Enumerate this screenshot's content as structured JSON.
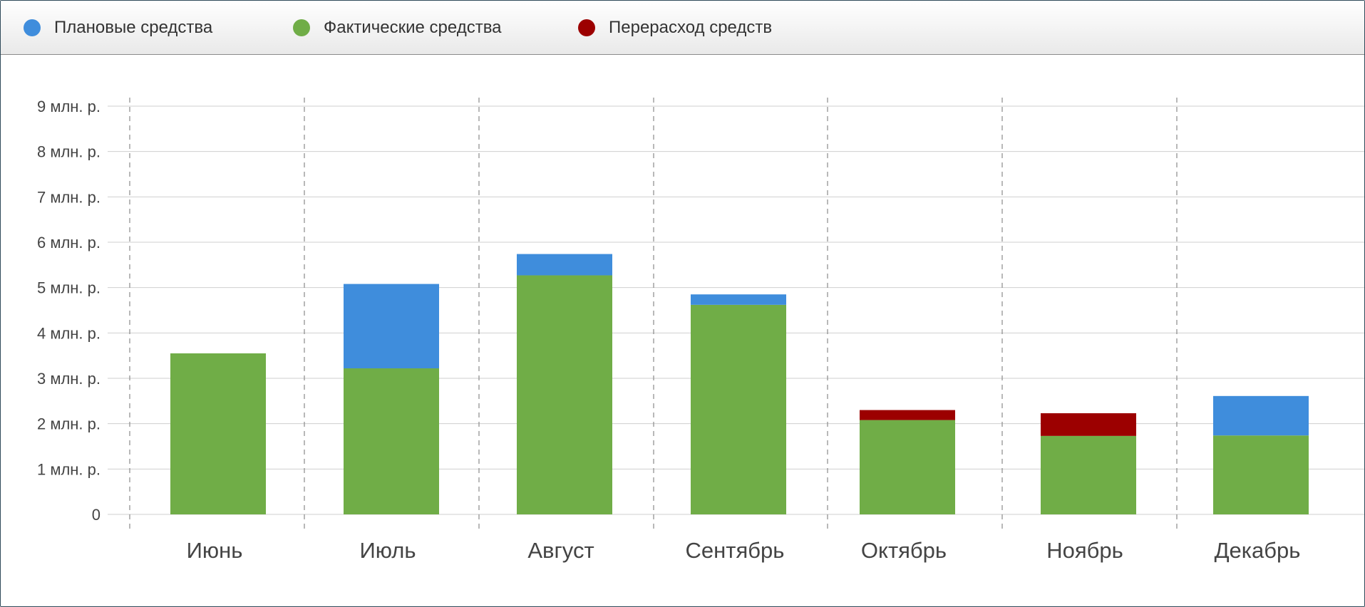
{
  "legend": {
    "items": [
      {
        "label": "Плановые средства",
        "color": "#3f8ddc"
      },
      {
        "label": "Фактические средства",
        "color": "#70ad47"
      },
      {
        "label": "Перерасход средств",
        "color": "#9c0000"
      }
    ]
  },
  "chart_data": {
    "type": "bar",
    "stacked": true,
    "categories": [
      "Июнь",
      "Июль",
      "Август",
      "Сентябрь",
      "Октябрь",
      "Ноябрь",
      "Декабрь"
    ],
    "series": [
      {
        "name": "Фактические средства",
        "color": "#70ad47",
        "values": [
          3.55,
          3.22,
          5.27,
          4.62,
          2.08,
          1.73,
          1.74
        ]
      },
      {
        "name": "Плановые средства",
        "color": "#3f8ddc",
        "values": [
          0,
          1.86,
          0.47,
          0.23,
          0,
          0,
          0.87
        ]
      },
      {
        "name": "Перерасход средств",
        "color": "#9c0000",
        "values": [
          0,
          0,
          0,
          0,
          0.22,
          0.5,
          0
        ]
      }
    ],
    "y_ticks": [
      "0",
      "1 млн. р.",
      "2 млн. р.",
      "3 млн. р.",
      "4 млн. р.",
      "5 млн. р.",
      "6 млн. р.",
      "7 млн. р.",
      "8 млн. р.",
      "9 млн. р."
    ],
    "ylim": [
      0,
      9
    ],
    "grid": true,
    "legend_position": "top-left"
  }
}
